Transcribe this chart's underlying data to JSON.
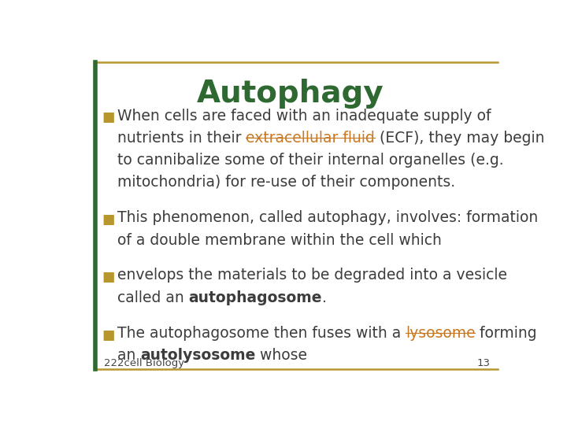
{
  "title": "Autophagy",
  "title_color": "#2d6930",
  "title_fontsize": 28,
  "background_color": "#ffffff",
  "border_color": "#b8962e",
  "border_color_left": "#2d6930",
  "bullet_color": "#b8962e",
  "text_color": "#3c3c3c",
  "link_color": "#c87820",
  "footer_text": "222cell Biology",
  "footer_page": "13",
  "bullets": [
    {
      "lines": [
        [
          {
            "t": "When cells are faced with an inadequate supply of",
            "style": "normal"
          }
        ],
        [
          {
            "t": "nutrients in their ",
            "style": "normal"
          },
          {
            "t": "extracellular fluid",
            "style": "link"
          },
          {
            "t": " (ECF), they may begin",
            "style": "normal"
          }
        ],
        [
          {
            "t": "to cannibalize some of their internal organelles (e.g.",
            "style": "normal"
          }
        ],
        [
          {
            "t": "mitochondria) for re-use of their components.",
            "style": "normal"
          }
        ]
      ]
    },
    {
      "lines": [
        [
          {
            "t": "This phenomenon, called autophagy, involves: formation",
            "style": "normal"
          }
        ],
        [
          {
            "t": "of a double membrane within the cell which",
            "style": "normal"
          }
        ]
      ]
    },
    {
      "lines": [
        [
          {
            "t": "envelops the materials to be degraded into a vesicle",
            "style": "normal"
          }
        ],
        [
          {
            "t": "called an ",
            "style": "normal"
          },
          {
            "t": "autophagosome",
            "style": "bold"
          },
          {
            "t": ".",
            "style": "normal"
          }
        ]
      ]
    },
    {
      "lines": [
        [
          {
            "t": "The autophagosome then fuses with a ",
            "style": "normal"
          },
          {
            "t": "lysosome",
            "style": "link"
          },
          {
            "t": " forming",
            "style": "normal"
          }
        ],
        [
          {
            "t": "an ",
            "style": "normal"
          },
          {
            "t": "autolysosome",
            "style": "bold"
          },
          {
            "t": " whose",
            "style": "normal"
          }
        ]
      ]
    }
  ],
  "body_fontsize": 13.5,
  "footer_fontsize": 9.5
}
